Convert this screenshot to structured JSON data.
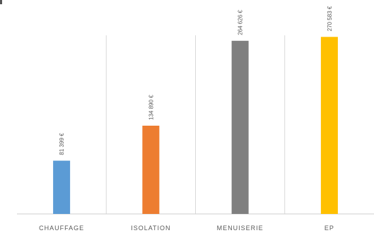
{
  "chart_data": {
    "type": "bar",
    "categories": [
      "CHAUFFAGE",
      "ISOLATION",
      "MENUISERIE",
      "EP"
    ],
    "values": [
      81399,
      134890,
      264626,
      270583
    ],
    "value_labels": [
      "81 399 €",
      "134 890 €",
      "264 626 €",
      "270 583 €"
    ],
    "colors": [
      "#5b9bd5",
      "#ed7d31",
      "#7f7f7f",
      "#ffc000"
    ],
    "ylim": [
      0,
      300000
    ],
    "grid": false,
    "legend": "none"
  }
}
